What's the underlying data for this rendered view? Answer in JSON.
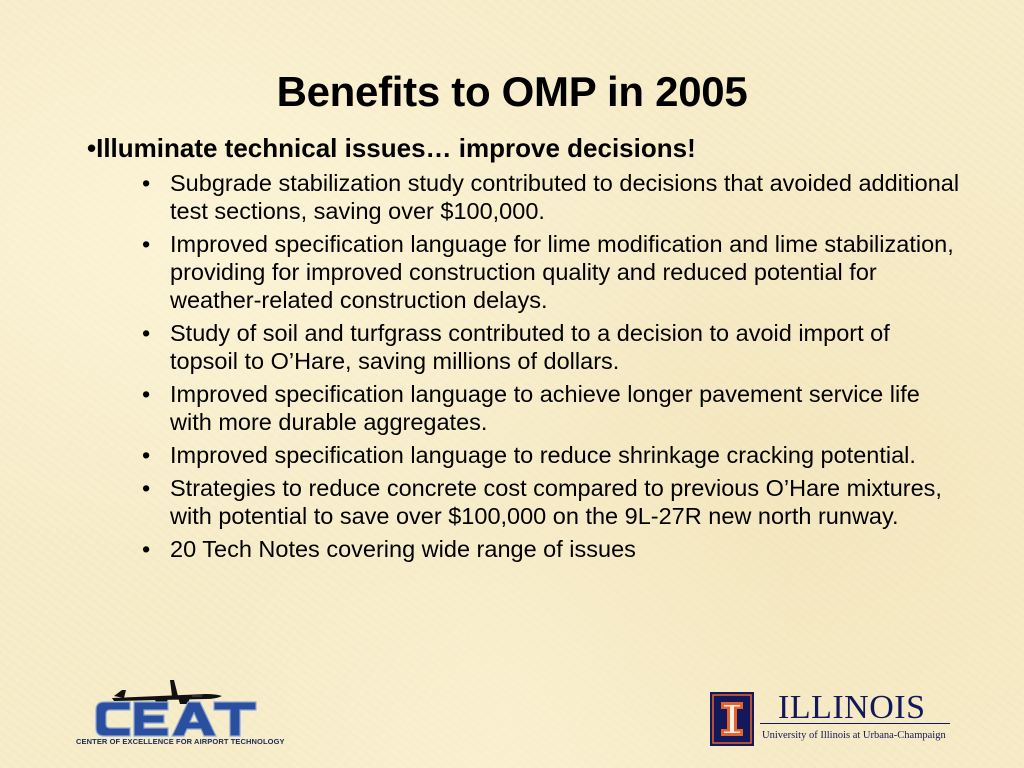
{
  "slide": {
    "title": "Benefits to OMP in 2005",
    "heading": "•Illuminate technical issues… improve decisions!",
    "bullet_glyph": "•",
    "bullets": [
      "Subgrade stabilization study contributed to decisions that avoided additional test sections, saving over $100,000.",
      "Improved specification language for lime modification and lime stabilization, providing for improved construction quality and reduced potential for weather-related construction delays.",
      "Study of soil and turfgrass contributed to a decision to avoid import of topsoil to O’Hare, saving millions of dollars.",
      "Improved specification language to achieve longer pavement service life with more durable aggregates.",
      "Improved specification language to reduce shrinkage cracking potential.",
      "Strategies to reduce concrete cost compared to previous O’Hare mixtures, with potential to save over $100,000 on the 9L-27R new north runway.",
      "20 Tech Notes covering wide range of issues"
    ]
  },
  "logos": {
    "ceat": {
      "wordmark": "CEAT",
      "caption": "CENTER OF EXCELLENCE FOR AIRPORT TECHNOLOGY",
      "icon": "airplane-icon",
      "color": "#1c2b55"
    },
    "illinois": {
      "wordmark": "ILLINOIS",
      "subtitle": "University of Illinois at Urbana-Champaign",
      "icon": "block-i-icon",
      "navy": "#13185a",
      "orange": "#e8632b"
    }
  },
  "theme": {
    "background": "#f7ecc8"
  }
}
